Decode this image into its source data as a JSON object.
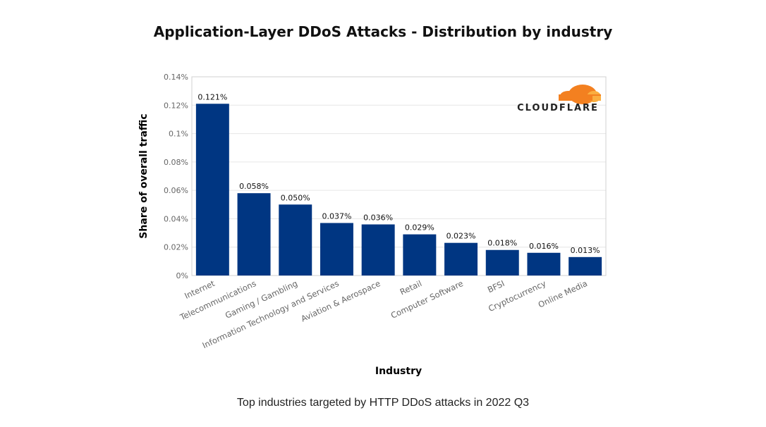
{
  "page": {
    "caption": "Top industries targeted by HTTP DDoS attacks in 2022 Q3"
  },
  "logo": {
    "text": "CLOUDFLARE",
    "icon": "cloud-icon",
    "colors": {
      "orange": "#f38020",
      "light_orange": "#faae40"
    }
  },
  "colors": {
    "bar": "#003682",
    "grid": "#e6e6e6",
    "frame": "#d0d0d0"
  },
  "chart_data": {
    "type": "bar",
    "title": "Application-Layer DDoS Attacks - Distribution by industry",
    "xlabel": "Industry",
    "ylabel": "Share of overall traffic",
    "categories": [
      "Internet",
      "Telecommunications",
      "Gaming / Gambling",
      "Information Technology and Services",
      "Aviation & Aerospace",
      "Retail",
      "Computer Software",
      "BFSI",
      "Cryptocurrency",
      "Online Media"
    ],
    "values": [
      0.121,
      0.058,
      0.05,
      0.037,
      0.036,
      0.029,
      0.023,
      0.018,
      0.016,
      0.013
    ],
    "value_labels": [
      "0.121%",
      "0.058%",
      "0.050%",
      "0.037%",
      "0.036%",
      "0.029%",
      "0.023%",
      "0.018%",
      "0.016%",
      "0.013%"
    ],
    "unit": "%",
    "ylim": [
      0,
      0.14
    ],
    "yticks": [
      0,
      0.02,
      0.04,
      0.06,
      0.08,
      0.1,
      0.12,
      0.14
    ],
    "ytick_labels": [
      "0%",
      "0.02%",
      "0.04%",
      "0.06%",
      "0.08%",
      "0.1%",
      "0.12%",
      "0.14%"
    ],
    "grid": true,
    "legend": "none"
  }
}
